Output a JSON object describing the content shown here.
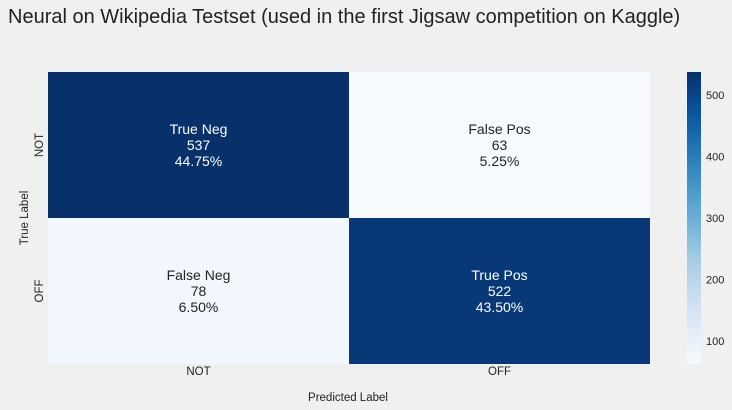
{
  "chart_data": {
    "type": "heatmap",
    "title": "Neural on Wikipedia Testset (used in the first Jigsaw competition on Kaggle)",
    "xlabel": "Predicted Label",
    "ylabel": "True Label",
    "x_categories": [
      "NOT",
      "OFF"
    ],
    "y_categories": [
      "NOT",
      "OFF"
    ],
    "matrix": [
      [
        537,
        63
      ],
      [
        78,
        522
      ]
    ],
    "cell_labels": [
      [
        {
          "name": "True Neg",
          "count": "537",
          "percent": "44.75%"
        },
        {
          "name": "False Pos",
          "count": "63",
          "percent": "5.25%"
        }
      ],
      [
        {
          "name": "False Neg",
          "count": "78",
          "percent": "6.50%"
        },
        {
          "name": "True Pos",
          "count": "522",
          "percent": "43.50%"
        }
      ]
    ],
    "colorbar": {
      "min": 63,
      "max": 537,
      "ticks": [
        100,
        200,
        300,
        400,
        500
      ],
      "colormap": [
        "#f7fbff",
        "#deebf7",
        "#c6dbef",
        "#9ecae1",
        "#6baed6",
        "#4292c6",
        "#2171b5",
        "#08519c",
        "#08306b"
      ]
    }
  }
}
